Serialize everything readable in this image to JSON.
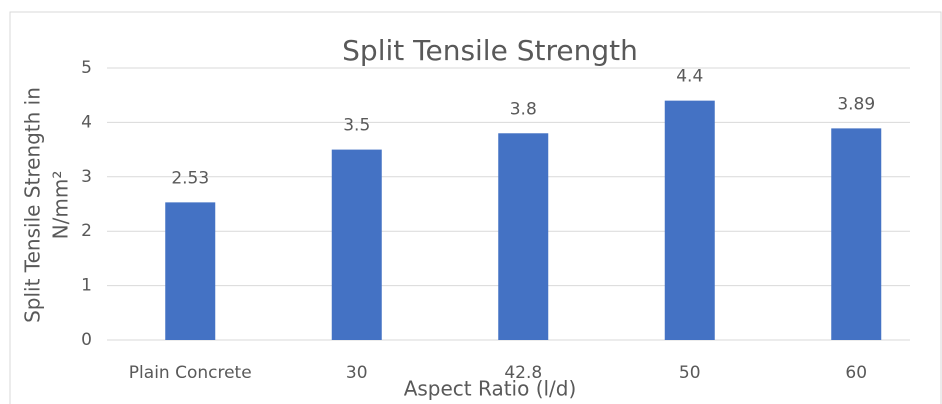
{
  "chart_data": {
    "type": "bar",
    "title": "Split Tensile Strength",
    "ylabel": [
      "Split Tensile Strength in",
      "N/mm²"
    ],
    "xlabel": "Aspect Ratio (l/d)",
    "categories": [
      "Plain Concrete",
      "30",
      "42.8",
      "50",
      "60"
    ],
    "values": [
      2.53,
      3.5,
      3.8,
      4.4,
      3.89
    ],
    "color": "#4472c4",
    "ylim": [
      0,
      5
    ],
    "yticks": [
      0,
      1,
      2,
      3,
      4,
      5
    ],
    "grid": true
  }
}
